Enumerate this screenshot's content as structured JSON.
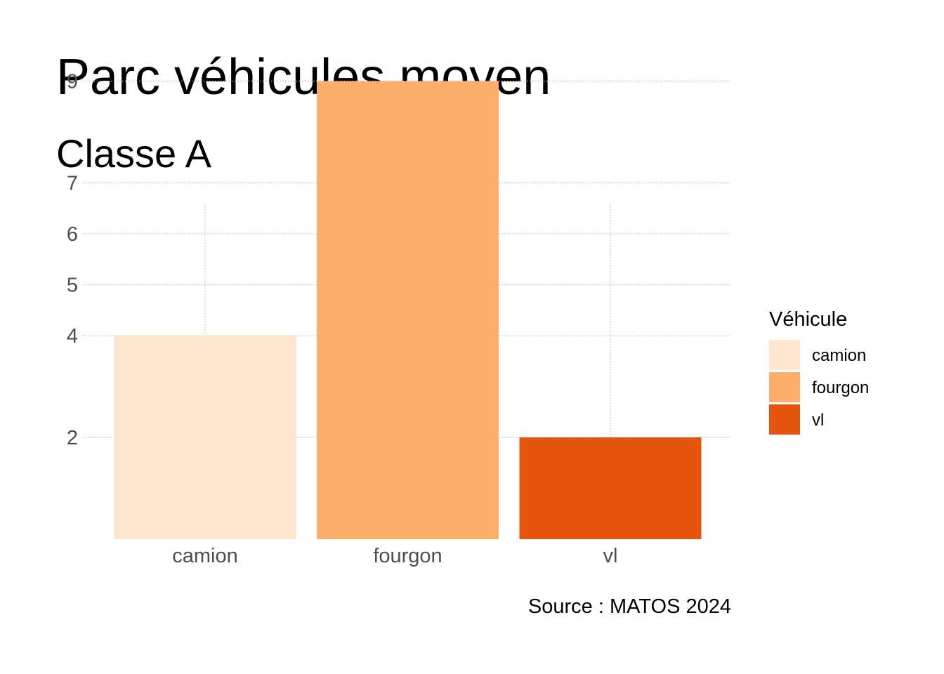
{
  "chart_data": {
    "type": "bar",
    "title": "Parc véhicules moyen",
    "subtitle": "Classe A",
    "caption": "Source : MATOS 2024",
    "xlabel": "",
    "ylabel": "",
    "categories": [
      "camion",
      "fourgon",
      "vl"
    ],
    "values": [
      4,
      9,
      2
    ],
    "colors": [
      "#fee6ce",
      "#fdae6b",
      "#e6550d"
    ],
    "y_ticks": [
      2,
      4,
      5,
      6,
      7,
      9
    ],
    "y_tick_labels": [
      "2",
      "4",
      "5",
      "6",
      "7",
      "9"
    ],
    "grid": true,
    "legend": {
      "title": "Véhicule",
      "placement": "right",
      "entries": [
        "camion",
        "fourgon",
        "vl"
      ]
    }
  }
}
